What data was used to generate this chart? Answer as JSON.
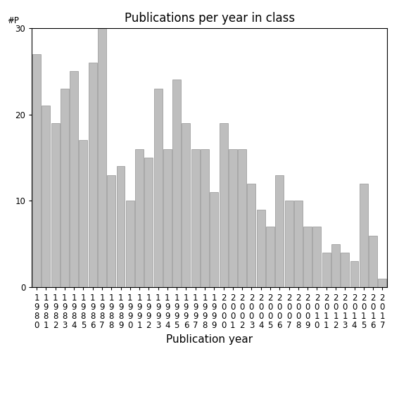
{
  "title": "Publications per year in class",
  "xlabel": "Publication year",
  "ylabel_text": "#P",
  "years": [
    "1980",
    "1981",
    "1982",
    "1983",
    "1984",
    "1985",
    "1986",
    "1987",
    "1988",
    "1989",
    "1990",
    "1991",
    "1992",
    "1993",
    "1994",
    "1995",
    "1996",
    "1997",
    "1998",
    "1999",
    "2000",
    "2001",
    "2002",
    "2003",
    "2004",
    "2005",
    "2006",
    "2007",
    "2008",
    "2009",
    "2010",
    "2011",
    "2012",
    "2013",
    "2014",
    "2015",
    "2016",
    "2017"
  ],
  "values": [
    27,
    21,
    19,
    23,
    25,
    17,
    26,
    30,
    13,
    14,
    10,
    16,
    15,
    23,
    16,
    24,
    19,
    16,
    16,
    11,
    19,
    16,
    16,
    12,
    9,
    7,
    13,
    10,
    10,
    7,
    7,
    4,
    5,
    4,
    3,
    12,
    6,
    1
  ],
  "bar_color": "#bebebe",
  "bar_edgecolor": "#808080",
  "ylim": [
    0,
    30
  ],
  "yticks": [
    0,
    10,
    20,
    30
  ],
  "background_color": "#ffffff",
  "title_fontsize": 12,
  "xlabel_fontsize": 11,
  "tick_fontsize": 8.5
}
